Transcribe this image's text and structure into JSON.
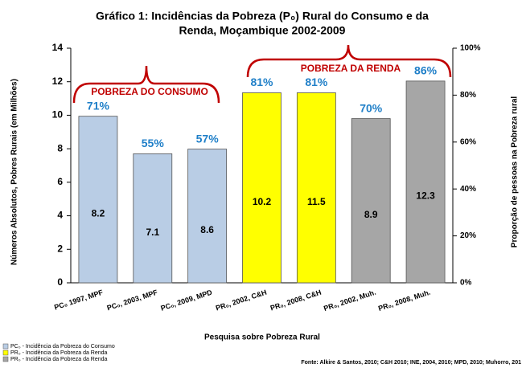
{
  "chart_data": {
    "type": "bar",
    "title": [
      "Gráfico 1: Incidências da Pobreza (P₀) Rural do Consumo e da",
      "Renda, Moçambique 2002-2009"
    ],
    "y_label": "Números Absolutos, Pobres Rurais (em Milhões)",
    "y2_label": "Proporção de pessoas na Pobreza rural",
    "x_label": "Pesquisa sobre Pobreza Rural",
    "categories": [
      "PC₀ 1997, MPF",
      "PC₀, 2003, MPF",
      "PC₀, 2009, MPD",
      "PR₀, 2002, C&H",
      "PR₀, 2008, C&H",
      "PR₀, 2002, Muh.",
      "PR₀, 2008, Muh."
    ],
    "series": [
      {
        "axis": "y2",
        "colors": [
          "#b9cde5",
          "#b9cde5",
          "#b9cde5",
          "#ffff00",
          "#ffff00",
          "#a6a6a6",
          "#a6a6a6"
        ],
        "values": [
          71,
          55,
          57,
          81,
          81,
          70,
          86
        ],
        "value_labels": [
          "71%",
          "55%",
          "57%",
          "81%",
          "81%",
          "70%",
          "86%"
        ],
        "absolute_values": [
          8.2,
          7.1,
          8.6,
          10.2,
          11.5,
          8.9,
          12.3
        ]
      }
    ],
    "ylim": [
      0,
      14
    ],
    "yticks": [
      0,
      2,
      4,
      6,
      8,
      10,
      12,
      14
    ],
    "y2lim": [
      0,
      100
    ],
    "y2ticks": [
      {
        "value": 0,
        "label": "0%"
      },
      {
        "value": 20,
        "label": "20%"
      },
      {
        "value": 40,
        "label": "40%"
      },
      {
        "value": 60,
        "label": "60%"
      },
      {
        "value": 80,
        "label": "80%"
      },
      {
        "value": 100,
        "label": "100%"
      }
    ],
    "annotations": [
      "POBREZA DO CONSUMO",
      "POBREZA DA RENDA"
    ],
    "legend": [
      {
        "label": "PC₀ - Incidência da Pobreza do Consumo",
        "color": "#b9cde5"
      },
      {
        "label": "PR₀ - Incidência da Pobreza da Renda",
        "color": "#ffff00"
      },
      {
        "label": "PR₀ - Incidência da Pobreza da Renda",
        "color": "#a6a6a6"
      }
    ],
    "source": "Fonte: Alkire & Santos, 2010; C&H 2010; INE, 2004, 2010; MPD, 2010; Muhorro, 201"
  }
}
